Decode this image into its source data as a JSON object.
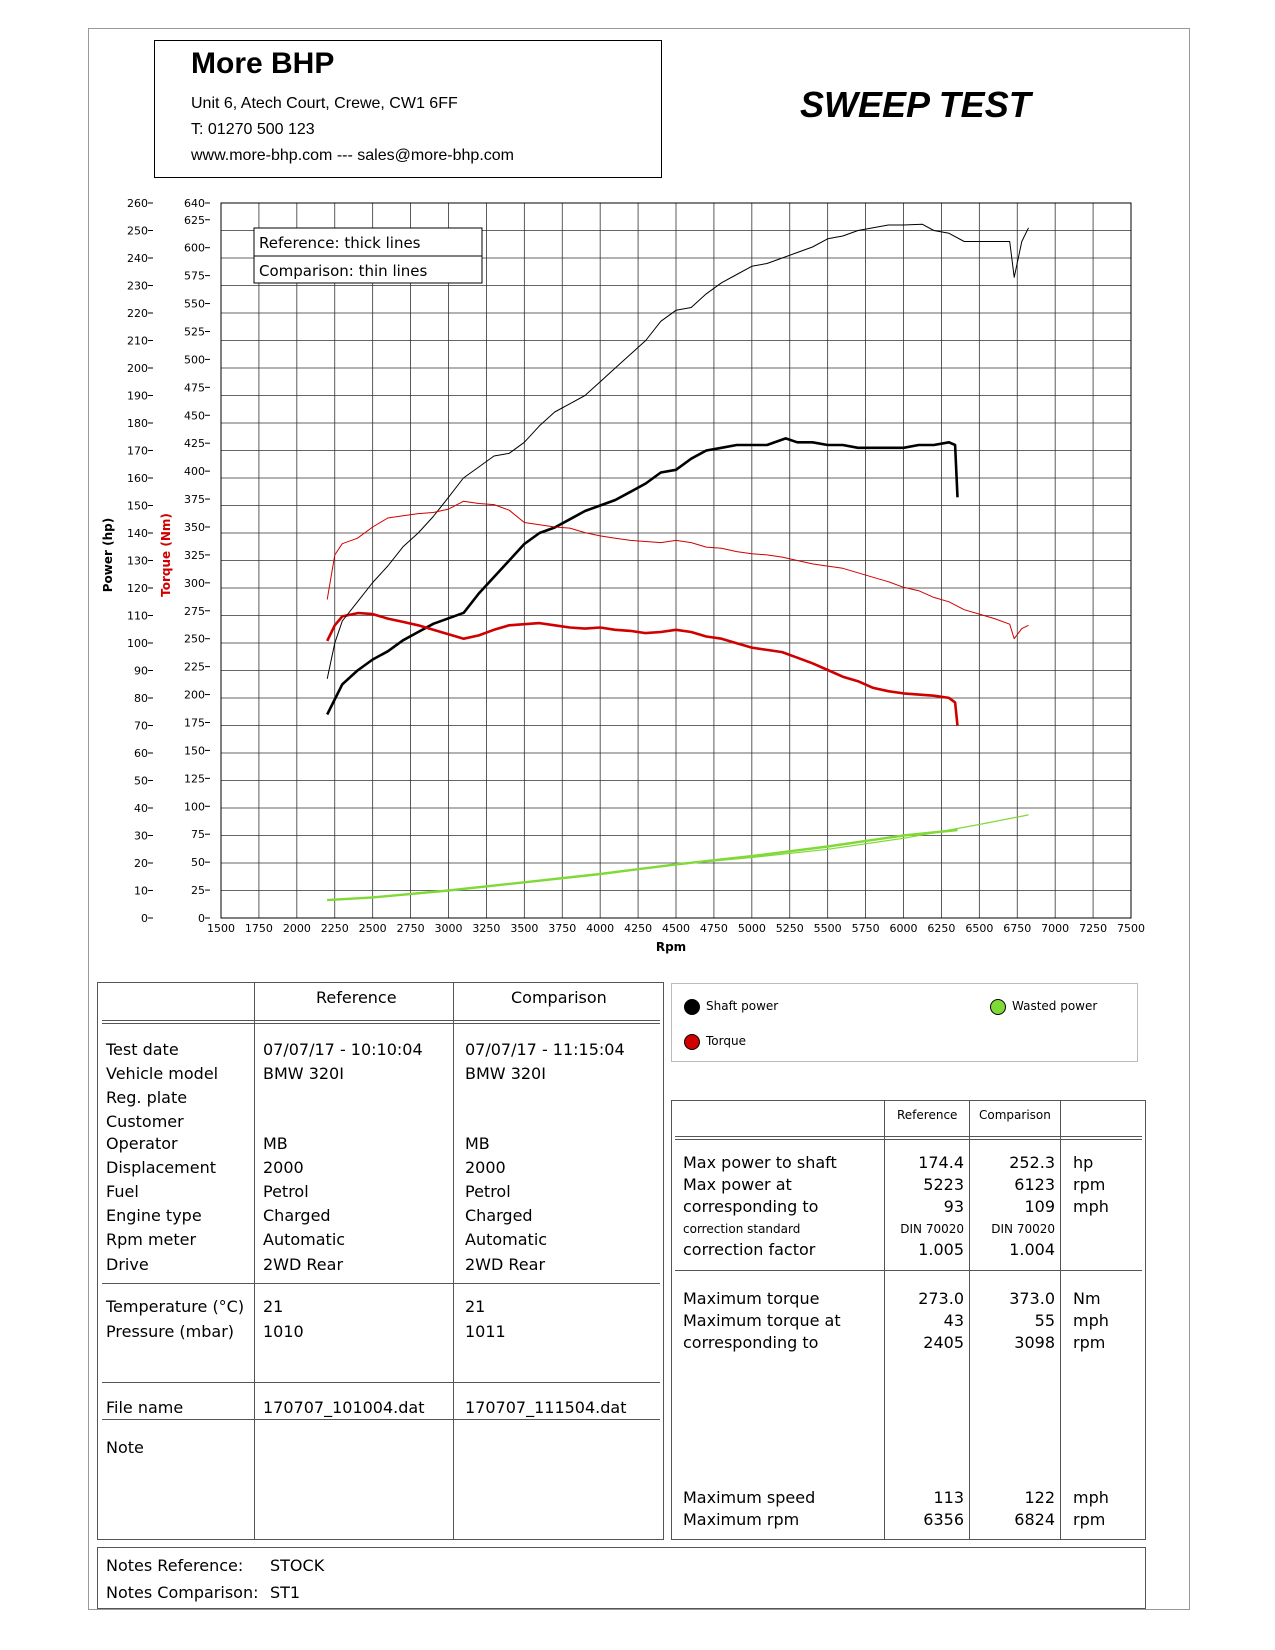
{
  "header": {
    "company": "More BHP",
    "address": "Unit 6, Atech Court, Crewe, CW1 6FF",
    "phone": "T: 01270 500 123",
    "web": "www.more-bhp.com --- sales@more-bhp.com",
    "report_title": "SWEEP TEST"
  },
  "chart_data": {
    "type": "line",
    "xlabel": "Rpm",
    "ylabel_left": "Power (hp)",
    "ylabel_right": "Torque (Nm)",
    "xlim": [
      1500,
      7500
    ],
    "x_ticks": [
      1500,
      1750,
      2000,
      2250,
      2500,
      2750,
      3000,
      3250,
      3500,
      3750,
      4000,
      4250,
      4500,
      4750,
      5000,
      5250,
      5500,
      5750,
      6000,
      6250,
      6500,
      6750,
      7000,
      7250,
      7500
    ],
    "ylim_power": [
      0,
      260
    ],
    "power_ticks": [
      0,
      10,
      20,
      30,
      40,
      50,
      60,
      70,
      80,
      90,
      100,
      110,
      120,
      130,
      140,
      150,
      160,
      170,
      180,
      190,
      200,
      210,
      220,
      230,
      240,
      250,
      260
    ],
    "ylim_torque": [
      0,
      640
    ],
    "torque_ticks": [
      0,
      25,
      50,
      75,
      100,
      125,
      150,
      175,
      200,
      225,
      250,
      275,
      300,
      325,
      350,
      375,
      400,
      425,
      450,
      475,
      500,
      525,
      550,
      575,
      600,
      625,
      640
    ],
    "legend_box": [
      "Reference: thick lines",
      "Comparison: thin lines"
    ],
    "series": [
      {
        "kind": "shaft_power",
        "run": "reference",
        "axis": "power",
        "color": "#000000",
        "x": [
          2200,
          2300,
          2400,
          2500,
          2600,
          2700,
          2800,
          2900,
          3000,
          3100,
          3200,
          3300,
          3400,
          3500,
          3600,
          3700,
          3800,
          3900,
          4000,
          4100,
          4200,
          4300,
          4400,
          4500,
          4600,
          4700,
          4800,
          4900,
          5000,
          5100,
          5223,
          5300,
          5400,
          5500,
          5600,
          5700,
          5800,
          5900,
          6000,
          6100,
          6200,
          6300,
          6340,
          6356
        ],
        "y": [
          74,
          85,
          90,
          94,
          97,
          101,
          104,
          107,
          109,
          111,
          118,
          124,
          130,
          136,
          140,
          142,
          145,
          148,
          150,
          152,
          155,
          158,
          162,
          163,
          167,
          170,
          171,
          172,
          172,
          172,
          174.4,
          173,
          173,
          172,
          172,
          171,
          171,
          171,
          171,
          172,
          172,
          173,
          172,
          153
        ]
      },
      {
        "kind": "torque",
        "run": "reference",
        "axis": "torque",
        "color": "#d00000",
        "x": [
          2200,
          2250,
          2300,
          2405,
          2500,
          2600,
          2700,
          2800,
          2900,
          3000,
          3100,
          3200,
          3300,
          3400,
          3500,
          3600,
          3700,
          3800,
          3900,
          4000,
          4100,
          4200,
          4300,
          4400,
          4500,
          4600,
          4700,
          4800,
          4900,
          5000,
          5100,
          5200,
          5300,
          5400,
          5500,
          5600,
          5700,
          5800,
          5900,
          6000,
          6100,
          6200,
          6300,
          6340,
          6356
        ],
        "y": [
          248,
          262,
          270,
          273,
          272,
          268,
          265,
          262,
          258,
          254,
          250,
          253,
          258,
          262,
          263,
          264,
          262,
          260,
          259,
          260,
          258,
          257,
          255,
          256,
          258,
          256,
          252,
          250,
          246,
          242,
          240,
          238,
          233,
          228,
          222,
          216,
          212,
          206,
          203,
          201,
          200,
          199,
          197,
          193,
          172
        ]
      },
      {
        "kind": "shaft_power",
        "run": "comparison",
        "axis": "power",
        "color": "#000000",
        "x": [
          2200,
          2250,
          2300,
          2400,
          2500,
          2600,
          2700,
          2800,
          2900,
          3000,
          3098,
          3200,
          3300,
          3400,
          3500,
          3600,
          3700,
          3800,
          3900,
          4000,
          4100,
          4200,
          4300,
          4400,
          4500,
          4600,
          4700,
          4800,
          4900,
          5000,
          5100,
          5200,
          5300,
          5400,
          5500,
          5600,
          5700,
          5800,
          5900,
          6000,
          6123,
          6200,
          6300,
          6400,
          6500,
          6600,
          6700,
          6730,
          6780,
          6824
        ],
        "y": [
          87,
          100,
          108,
          115,
          122,
          128,
          135,
          140,
          146,
          153,
          160,
          164,
          168,
          169,
          173,
          179,
          184,
          187,
          190,
          195,
          200,
          205,
          210,
          217,
          221,
          222,
          227,
          231,
          234,
          237,
          238,
          240,
          242,
          244,
          247,
          248,
          250,
          251,
          252,
          252,
          252.3,
          250,
          249,
          246,
          246,
          246,
          246,
          233,
          246,
          251
        ]
      },
      {
        "kind": "torque",
        "run": "comparison",
        "axis": "torque",
        "color": "#d00000",
        "x": [
          2200,
          2250,
          2300,
          2400,
          2500,
          2600,
          2700,
          2800,
          2900,
          3000,
          3098,
          3200,
          3300,
          3400,
          3500,
          3600,
          3700,
          3800,
          3900,
          4000,
          4100,
          4200,
          4300,
          4400,
          4500,
          4600,
          4700,
          4800,
          4900,
          5000,
          5100,
          5200,
          5300,
          5400,
          5500,
          5600,
          5700,
          5800,
          5900,
          6000,
          6100,
          6200,
          6300,
          6400,
          6500,
          6600,
          6700,
          6730,
          6780,
          6824
        ],
        "y": [
          285,
          325,
          335,
          340,
          350,
          358,
          360,
          362,
          363,
          366,
          373,
          371,
          370,
          365,
          354,
          352,
          350,
          349,
          345,
          342,
          340,
          338,
          337,
          336,
          338,
          336,
          332,
          331,
          328,
          326,
          325,
          323,
          320,
          317,
          315,
          313,
          309,
          305,
          301,
          296,
          293,
          287,
          283,
          276,
          272,
          268,
          263,
          250,
          259,
          262
        ]
      },
      {
        "kind": "wasted_power",
        "run": "reference",
        "axis": "power",
        "color": "#7fd936",
        "x": [
          2200,
          2500,
          3000,
          3500,
          4000,
          4500,
          5000,
          5500,
          6000,
          6356
        ],
        "y": [
          6.5,
          7.5,
          10,
          13,
          16,
          19.5,
          22.5,
          26,
          30,
          32
        ]
      },
      {
        "kind": "wasted_power",
        "run": "comparison",
        "axis": "power",
        "color": "#7fd936",
        "x": [
          2200,
          2500,
          3000,
          3500,
          4000,
          4500,
          5000,
          5500,
          6000,
          6500,
          6824
        ],
        "y": [
          6.5,
          7.5,
          10,
          13,
          16,
          19.5,
          22,
          25,
          29,
          34,
          37.5
        ]
      }
    ]
  },
  "legend": {
    "shaft_power": "Shaft power",
    "torque": "Torque",
    "wasted_power": "Wasted power",
    "colors": {
      "shaft": "#000000",
      "torque": "#d00000",
      "wasted": "#7fd936"
    }
  },
  "info_table": {
    "col_reference": "Reference",
    "col_comparison": "Comparison",
    "rows": [
      {
        "label": "Test date",
        "ref": "07/07/17 - 10:10:04",
        "cmp": "07/07/17 - 11:15:04"
      },
      {
        "label": "Vehicle model",
        "ref": "BMW 320I",
        "cmp": "BMW 320I"
      },
      {
        "label": "Reg. plate",
        "ref": "",
        "cmp": ""
      },
      {
        "label": "Customer",
        "ref": "",
        "cmp": ""
      },
      {
        "label": "Operator",
        "ref": "MB",
        "cmp": "MB"
      },
      {
        "label": "Displacement",
        "ref": "2000",
        "cmp": "2000"
      },
      {
        "label": "Fuel",
        "ref": "Petrol",
        "cmp": "Petrol"
      },
      {
        "label": "Engine type",
        "ref": "Charged",
        "cmp": "Charged"
      },
      {
        "label": "Rpm meter",
        "ref": "Automatic",
        "cmp": "Automatic"
      },
      {
        "label": "Drive",
        "ref": "2WD Rear",
        "cmp": "2WD Rear"
      }
    ],
    "env_rows": [
      {
        "label": "Temperature (°C)",
        "ref": "21",
        "cmp": "21"
      },
      {
        "label": "Pressure (mbar)",
        "ref": "1010",
        "cmp": "1011"
      }
    ],
    "file_row": {
      "label": "File name",
      "ref": "170707_101004.dat",
      "cmp": "170707_111504.dat"
    },
    "note_label": "Note"
  },
  "results_table": {
    "col_reference": "Reference",
    "col_comparison": "Comparison",
    "power_rows": [
      {
        "label": "Max power to shaft",
        "ref": "174.4",
        "cmp": "252.3",
        "unit": "hp"
      },
      {
        "label": "Max power at",
        "ref": "5223",
        "cmp": "6123",
        "unit": "rpm"
      },
      {
        "label": "corresponding to",
        "ref": "93",
        "cmp": "109",
        "unit": "mph"
      },
      {
        "label": "correction standard",
        "ref": "DIN 70020",
        "cmp": "DIN 70020",
        "unit": ""
      },
      {
        "label": "correction factor",
        "ref": "1.005",
        "cmp": "1.004",
        "unit": ""
      }
    ],
    "torque_rows": [
      {
        "label": "Maximum torque",
        "ref": "273.0",
        "cmp": "373.0",
        "unit": "Nm"
      },
      {
        "label": "Maximum torque at",
        "ref": "43",
        "cmp": "55",
        "unit": "mph"
      },
      {
        "label": "corresponding to",
        "ref": "2405",
        "cmp": "3098",
        "unit": "rpm"
      }
    ],
    "speed_rows": [
      {
        "label": "Maximum speed",
        "ref": "113",
        "cmp": "122",
        "unit": "mph"
      },
      {
        "label": "Maximum rpm",
        "ref": "6356",
        "cmp": "6824",
        "unit": "rpm"
      }
    ]
  },
  "notes": {
    "ref_label": "Notes Reference:",
    "ref_value": "STOCK",
    "cmp_label": "Notes Comparison:",
    "cmp_value": "ST1"
  }
}
